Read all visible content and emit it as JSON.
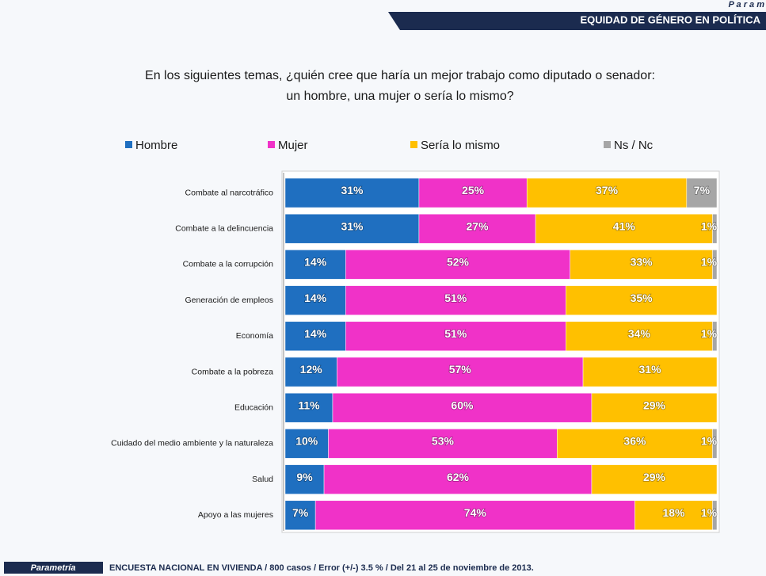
{
  "chart_data": {
    "type": "stacked_bar_horizontal",
    "header": "EQUIDAD DE GÉNERO EN POLÍTICA",
    "brand": "P a r a m",
    "title": [
      "En los siguientes temas, ¿quién cree que haría un mejor trabajo como diputado o senador:",
      "un hombre, una mujer o sería lo mismo?"
    ],
    "categories": [
      "Combate al narcotráfico",
      "Combate a la delincuencia",
      "Combate a la corrupción",
      "Generación de empleos",
      "Economía",
      "Combate a la pobreza",
      "Educación",
      "Cuidado del medio ambiente y la naturaleza",
      "Salud",
      "Apoyo a las mujeres"
    ],
    "xlim": [
      0,
      100
    ],
    "series": [
      {
        "name": "Hombre",
        "color": "#1f6fc0",
        "values": [
          31,
          31,
          14,
          14,
          14,
          12,
          11,
          10,
          9,
          7
        ],
        "value_labels": [
          "31%",
          "31%",
          "14%",
          "14%",
          "14%",
          "12%",
          "11%",
          "10%",
          "9%",
          "7%"
        ]
      },
      {
        "name": "Mujer",
        "color": "#f032c8",
        "values": [
          25,
          27,
          52,
          51,
          51,
          57,
          60,
          53,
          62,
          74
        ],
        "value_labels": [
          "25%",
          "27%",
          "52%",
          "51%",
          "51%",
          "57%",
          "60%",
          "53%",
          "62%",
          "74%"
        ]
      },
      {
        "name": "Sería lo mismo",
        "color": "#ffc000",
        "values": [
          37,
          41,
          33,
          35,
          34,
          31,
          29,
          36,
          29,
          18
        ],
        "value_labels": [
          "37%",
          "41%",
          "33%",
          "35%",
          "34%",
          "31%",
          "29%",
          "36%",
          "29%",
          "18%"
        ]
      },
      {
        "name": "Ns / Nc",
        "color": "#a6a6a6",
        "values": [
          7,
          1,
          1,
          0,
          1,
          0,
          0,
          1,
          0,
          1
        ],
        "value_labels": [
          "7%",
          "1%",
          "1%",
          null,
          "1%",
          null,
          null,
          "1%",
          null,
          "1%"
        ]
      }
    ],
    "footer_logo": "Parametría",
    "footer": "ENCUESTA NACIONAL EN VIVIENDA / 800 casos / Error (+/-) 3.5 % / Del 21 al 25 de noviembre de 2013."
  }
}
